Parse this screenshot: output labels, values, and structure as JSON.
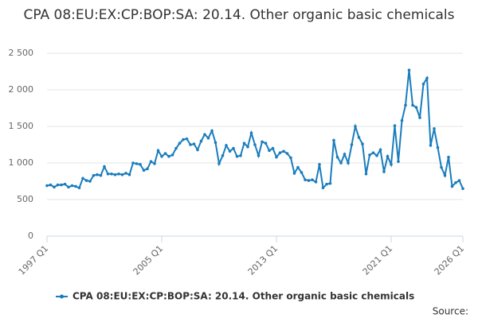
{
  "chart_data": {
    "type": "line",
    "title": "CPA 08:EU:EX:CP:BOP:SA: 20.14. Other organic basic chemicals",
    "source": "Source:",
    "categories": [
      "1997 Q1",
      null,
      null,
      null,
      null,
      null,
      null,
      null,
      null,
      null,
      null,
      null,
      null,
      null,
      null,
      null,
      null,
      null,
      null,
      null,
      null,
      null,
      null,
      null,
      null,
      null,
      null,
      null,
      null,
      null,
      null,
      null,
      "2005 Q1",
      null,
      null,
      null,
      null,
      null,
      null,
      null,
      null,
      null,
      null,
      null,
      null,
      null,
      null,
      null,
      null,
      null,
      null,
      null,
      null,
      null,
      null,
      null,
      null,
      null,
      null,
      null,
      null,
      null,
      null,
      null,
      "2013 Q1",
      null,
      null,
      null,
      null,
      null,
      null,
      null,
      null,
      null,
      null,
      null,
      null,
      null,
      null,
      null,
      null,
      null,
      null,
      null,
      null,
      null,
      null,
      null,
      null,
      null,
      null,
      null,
      null,
      null,
      null,
      null,
      "2021 Q1",
      null,
      null,
      null,
      null,
      null,
      null,
      null,
      null,
      null,
      null,
      null,
      null,
      null,
      null,
      null,
      null,
      null,
      null,
      null,
      "2026 Q1"
    ],
    "series": [
      {
        "name": "CPA 08:EU:EX:CP:BOP:SA: 20.14. Other organic basic chemicals",
        "color": "#1a7dbd",
        "values": [
          690,
          700,
          670,
          700,
          700,
          710,
          670,
          690,
          680,
          660,
          790,
          760,
          750,
          830,
          840,
          830,
          950,
          850,
          850,
          840,
          850,
          840,
          860,
          840,
          1000,
          990,
          980,
          900,
          920,
          1020,
          990,
          1170,
          1090,
          1130,
          1090,
          1110,
          1200,
          1270,
          1320,
          1330,
          1250,
          1260,
          1180,
          1300,
          1390,
          1340,
          1440,
          1280,
          990,
          1100,
          1240,
          1160,
          1200,
          1090,
          1100,
          1270,
          1220,
          1410,
          1250,
          1100,
          1290,
          1270,
          1170,
          1200,
          1080,
          1140,
          1160,
          1130,
          1070,
          860,
          940,
          870,
          770,
          760,
          770,
          740,
          980,
          660,
          710,
          720,
          1310,
          1080,
          1000,
          1120,
          1000,
          1250,
          1500,
          1350,
          1260,
          850,
          1110,
          1140,
          1100,
          1180,
          880,
          1090,
          980,
          1510,
          1020,
          1580,
          1790,
          2270,
          1790,
          1760,
          1620,
          2080,
          2160,
          1240,
          1470,
          1210,
          940,
          830,
          1080,
          680,
          730,
          760,
          650
        ]
      }
    ],
    "ylim": [
      0,
      2500
    ],
    "yticks": [
      0,
      500,
      {
        "value": 1000,
        "label": "1 000"
      },
      {
        "value": 1500,
        "label": "1 500"
      },
      {
        "value": 2000,
        "label": "2 000"
      },
      {
        "value": 2500,
        "label": "2 500"
      }
    ],
    "grid": true
  }
}
